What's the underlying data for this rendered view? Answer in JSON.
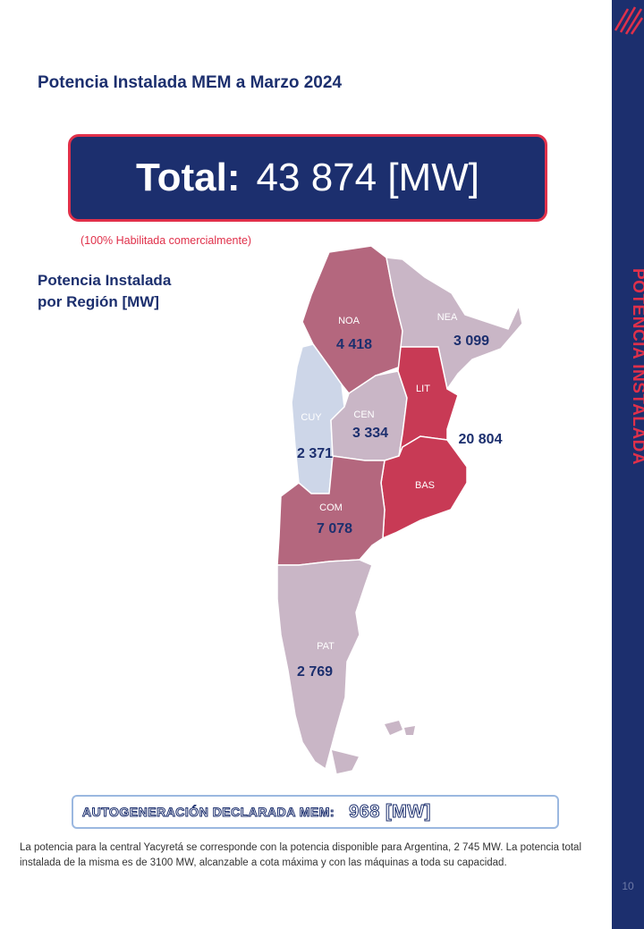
{
  "heading": "Potencia Instalada MEM a Marzo 2024",
  "total": {
    "label": "Total:",
    "value": "43 874 [MW]",
    "note": "(100% Habilitada comercialmente)"
  },
  "region_section": {
    "title_line1": "Potencia Instalada",
    "title_line2": "por Región [MW]"
  },
  "regions": [
    {
      "code": "NOA",
      "value": "4 418",
      "color": "#b4677e"
    },
    {
      "code": "NEA",
      "value": "3 099",
      "color": "#c9b6c6"
    },
    {
      "code": "LIT",
      "value": "20 804",
      "color": "#c83a55"
    },
    {
      "code": "CUY",
      "value": "2 371",
      "color": "#cdd6e8"
    },
    {
      "code": "CEN",
      "value": "3 334",
      "color": "#c9b6c6"
    },
    {
      "code": "BAS",
      "value": "",
      "color": "#c83a55"
    },
    {
      "code": "COM",
      "value": "7 078",
      "color": "#b4677e"
    },
    {
      "code": "PAT",
      "value": "2 769",
      "color": "#c9b6c6"
    }
  ],
  "autogeneracion": {
    "label": "AUTOGENERACIÓN DECLARADA MEM:",
    "value": "968 [MW]"
  },
  "footnote": "La potencia para la central Yacyretá se corresponde con la potencia disponible para Argentina, 2 745 MW. La potencia total instalada de la misma es de 3100 MW, alcanzable a cota máxima y con las máquinas a toda su capacidad.",
  "sidebar": {
    "title": "POTENCIA INSTALADA",
    "page_number": "10",
    "logo_icon": "brand-logo-icon",
    "accent": "#e0304a",
    "navy": "#1c2f6e"
  }
}
